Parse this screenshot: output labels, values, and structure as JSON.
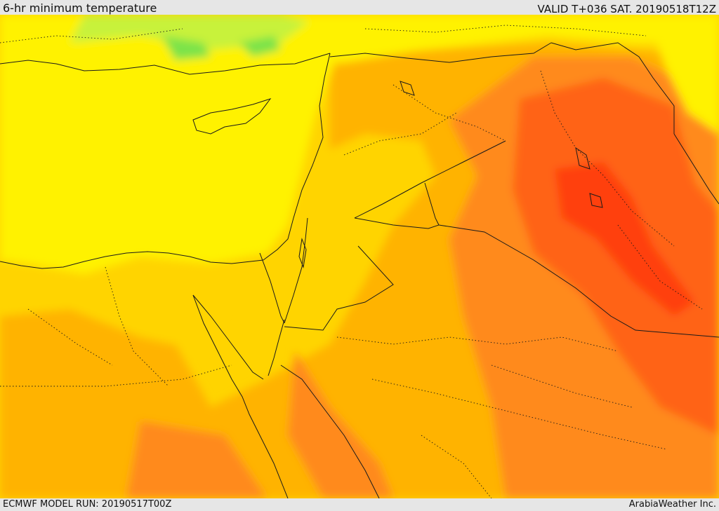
{
  "header": {
    "title": "6-hr minimum temperature",
    "valid_time": "VALID T+036 SAT. 20190518T12Z"
  },
  "footer": {
    "model_run": "ECMWF MODEL RUN: 20190517T00Z",
    "credit": "ArabiaWeather Inc."
  },
  "map": {
    "region": "Eastern Mediterranean / Levant / Iraq / Northern Arabia",
    "field": "6-hr minimum temperature",
    "color_scale": {
      "light_green": "#7be34a",
      "yellow_green": "#c8f23a",
      "yellow": "#fff200",
      "gold": "#ffd400",
      "light_orange": "#ffb300",
      "orange": "#ff8a1a",
      "dark_orange": "#ff6414",
      "red_orange": "#ff4010"
    }
  }
}
